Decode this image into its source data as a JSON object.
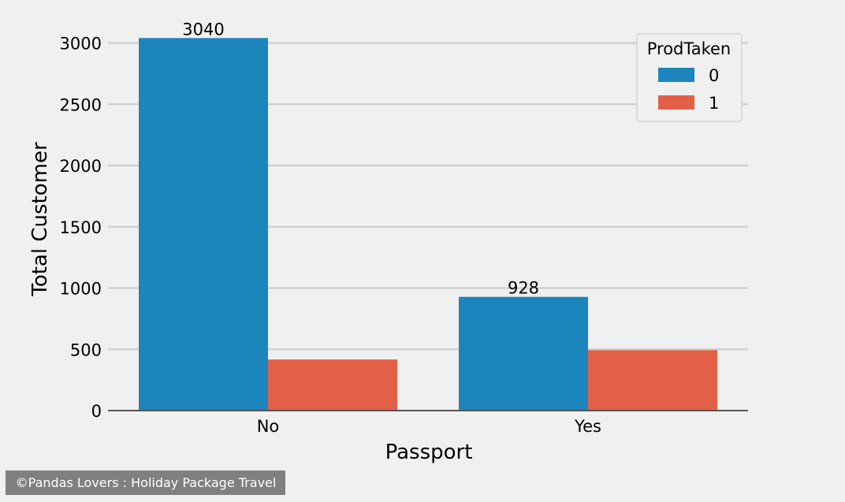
{
  "chart_data": {
    "type": "bar",
    "categories": [
      "No",
      "Yes"
    ],
    "series": [
      {
        "name": "0",
        "values": [
          3040,
          928
        ],
        "color": "#1c86bc"
      },
      {
        "name": "1",
        "values": [
          417,
          493
        ],
        "color": "#e35f48"
      }
    ],
    "data_labels": [
      "3040",
      "",
      "928",
      ""
    ],
    "xlabel": "Passport",
    "ylabel": "Total Customer",
    "ylim": [
      0,
      3200
    ],
    "yticks": [
      0,
      500,
      1000,
      1500,
      2000,
      2500,
      3000
    ],
    "grid": true,
    "legend": {
      "title": "ProdTaken",
      "placement": "top-right"
    }
  },
  "credit": "©Pandas Lovers : Holiday Package Travel"
}
